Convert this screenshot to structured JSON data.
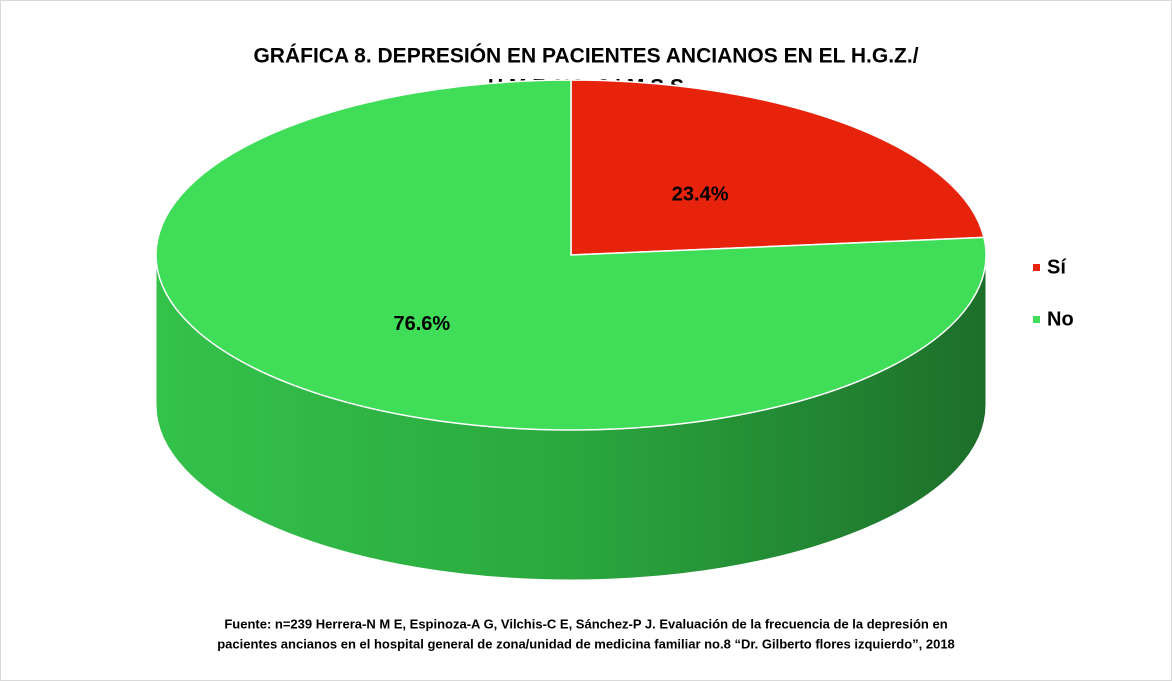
{
  "chart_data": {
    "type": "pie",
    "title": [
      "GRÁFICA 8. DEPRESIÓN  EN PACIENTES ANCIANOS EN EL H.G.Z./",
      "U.M.F. NO. 8 I.M.S.S"
    ],
    "categories": [
      "Sí",
      "No"
    ],
    "values": [
      23.4,
      76.6
    ],
    "value_labels": [
      "23.4%",
      "76.6%"
    ],
    "colors": [
      "#e8230c",
      "#3fdd58"
    ],
    "legend": "right",
    "source": [
      "Fuente: n=239 Herrera-N M E, Espinoza-A G, Vilchis-C E, Sánchez-P J. Evaluación de la frecuencia de la depresión en",
      "pacientes ancianos en el hospital general de zona/unidad de medicina familiar no.8 “Dr. Gilberto flores izquierdo”, 2018"
    ]
  }
}
